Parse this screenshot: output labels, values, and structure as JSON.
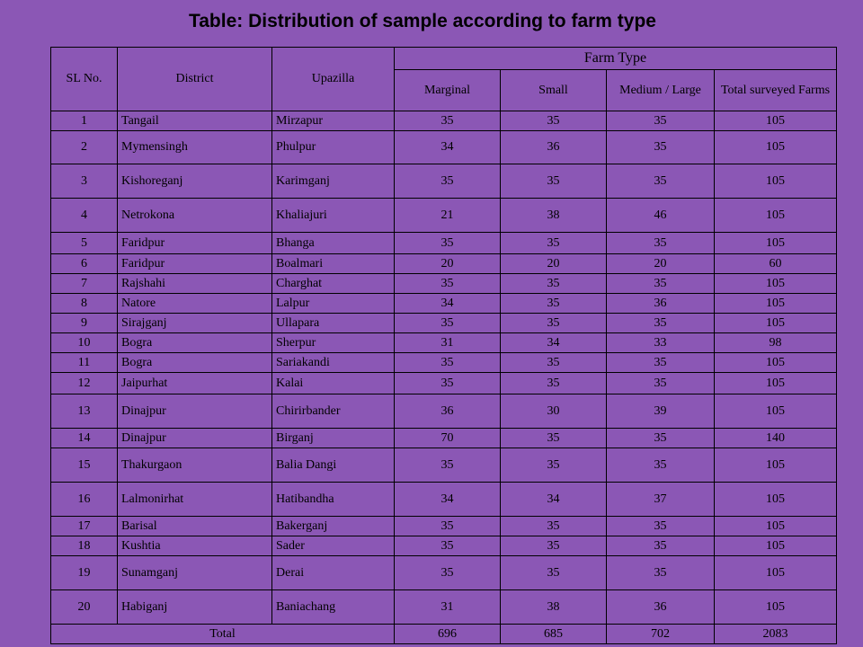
{
  "title": "Table: Distribution of sample according to farm type",
  "headers": {
    "sl_no": "SL No.",
    "district": "District",
    "upazilla": "Upazilla",
    "farm_type": "Farm Type",
    "marginal": "Marginal",
    "small": "Small",
    "medium_large": "Medium / Large",
    "total_surveyed": "Total surveyed Farms"
  },
  "rows": [
    {
      "sl": "1",
      "district": "Tangail",
      "upazilla": "Mirzapur",
      "marginal": "35",
      "small": "35",
      "medium": "35",
      "total": "105"
    },
    {
      "sl": "2",
      "district": "Mymensingh",
      "upazilla": "Phulpur",
      "marginal": "34",
      "small": "36",
      "medium": "35",
      "total": "105"
    },
    {
      "sl": "3",
      "district": "Kishoreganj",
      "upazilla": "Karimganj",
      "marginal": "35",
      "small": "35",
      "medium": "35",
      "total": "105"
    },
    {
      "sl": "4",
      "district": "Netrokona",
      "upazilla": "Khaliajuri",
      "marginal": "21",
      "small": "38",
      "medium": "46",
      "total": "105"
    },
    {
      "sl": "5",
      "district": "Faridpur",
      "upazilla": "Bhanga",
      "marginal": "35",
      "small": "35",
      "medium": "35",
      "total": "105"
    },
    {
      "sl": "6",
      "district": "Faridpur",
      "upazilla": "Boalmari",
      "marginal": "20",
      "small": "20",
      "medium": "20",
      "total": "60"
    },
    {
      "sl": "7",
      "district": "Rajshahi",
      "upazilla": "Charghat",
      "marginal": "35",
      "small": "35",
      "medium": "35",
      "total": "105"
    },
    {
      "sl": "8",
      "district": "Natore",
      "upazilla": "Lalpur",
      "marginal": "34",
      "small": "35",
      "medium": "36",
      "total": "105"
    },
    {
      "sl": "9",
      "district": "Sirajganj",
      "upazilla": "Ullapara",
      "marginal": "35",
      "small": "35",
      "medium": "35",
      "total": "105"
    },
    {
      "sl": "10",
      "district": "Bogra",
      "upazilla": "Sherpur",
      "marginal": "31",
      "small": "34",
      "medium": "33",
      "total": "98"
    },
    {
      "sl": "11",
      "district": "Bogra",
      "upazilla": "Sariakandi",
      "marginal": "35",
      "small": "35",
      "medium": "35",
      "total": "105"
    },
    {
      "sl": "12",
      "district": "Jaipurhat",
      "upazilla": "Kalai",
      "marginal": "35",
      "small": "35",
      "medium": "35",
      "total": "105"
    },
    {
      "sl": "13",
      "district": "Dinajpur",
      "upazilla": "Chirirbander",
      "marginal": "36",
      "small": "30",
      "medium": "39",
      "total": "105"
    },
    {
      "sl": "14",
      "district": "Dinajpur",
      "upazilla": "Birganj",
      "marginal": "70",
      "small": "35",
      "medium": "35",
      "total": "140"
    },
    {
      "sl": "15",
      "district": "Thakurgaon",
      "upazilla": "Balia Dangi",
      "marginal": "35",
      "small": "35",
      "medium": "35",
      "total": "105"
    },
    {
      "sl": "16",
      "district": "Lalmonirhat",
      "upazilla": "Hatibandha",
      "marginal": "34",
      "small": "34",
      "medium": "37",
      "total": "105"
    },
    {
      "sl": "17",
      "district": "Barisal",
      "upazilla": "Bakerganj",
      "marginal": "35",
      "small": "35",
      "medium": "35",
      "total": "105"
    },
    {
      "sl": "18",
      "district": "Kushtia",
      "upazilla": "Sader",
      "marginal": "35",
      "small": "35",
      "medium": "35",
      "total": "105"
    },
    {
      "sl": "19",
      "district": "Sunamganj",
      "upazilla": "Derai",
      "marginal": "35",
      "small": "35",
      "medium": "35",
      "total": "105"
    },
    {
      "sl": "20",
      "district": "Habiganj",
      "upazilla": "Baniachang",
      "marginal": "31",
      "small": "38",
      "medium": "36",
      "total": "105"
    }
  ],
  "total_row": {
    "label": "Total",
    "marginal": "696",
    "small": "685",
    "medium": "702",
    "total": "2083"
  }
}
